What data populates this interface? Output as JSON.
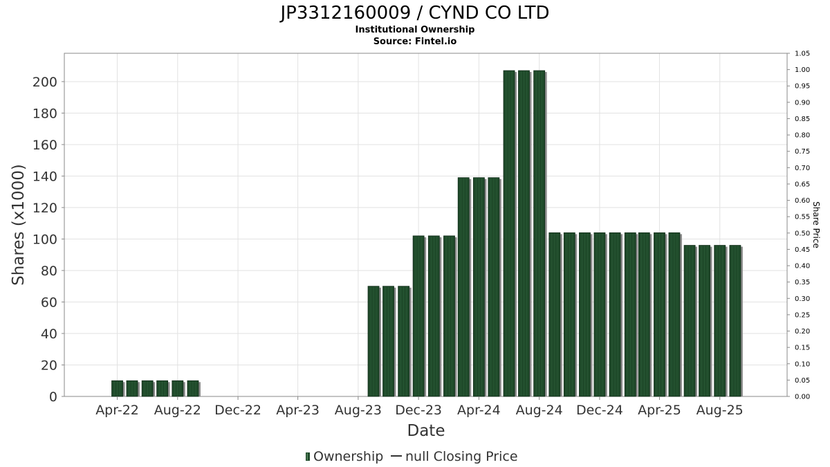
{
  "chart_data": {
    "type": "bar",
    "title": "JP3312160009 / CYND CO LTD",
    "subtitle": "Institutional Ownership",
    "source": "Source: Fintel.io",
    "xlabel": "Date",
    "ylabel": "Shares (x1000)",
    "ylabel_right": "Share Price",
    "ylim": [
      0,
      218
    ],
    "ylim_right": [
      0,
      1.05
    ],
    "yticks": [
      0,
      20,
      40,
      60,
      80,
      100,
      120,
      140,
      160,
      180,
      200
    ],
    "yticks_right": [
      "0.00",
      "0.05",
      "0.10",
      "0.15",
      "0.20",
      "0.25",
      "0.30",
      "0.35",
      "0.40",
      "0.45",
      "0.50",
      "0.55",
      "0.60",
      "0.65",
      "0.70",
      "0.75",
      "0.80",
      "0.85",
      "0.90",
      "0.95",
      "1.00",
      "1.05"
    ],
    "x_range": [
      "2021-12-15",
      "2025-12-15"
    ],
    "xticks": [
      {
        "date": "2022-04-01",
        "label": "Apr-22"
      },
      {
        "date": "2022-08-01",
        "label": "Aug-22"
      },
      {
        "date": "2022-12-01",
        "label": "Dec-22"
      },
      {
        "date": "2023-04-01",
        "label": "Apr-23"
      },
      {
        "date": "2023-08-01",
        "label": "Aug-23"
      },
      {
        "date": "2023-12-01",
        "label": "Dec-23"
      },
      {
        "date": "2024-04-01",
        "label": "Apr-24"
      },
      {
        "date": "2024-08-01",
        "label": "Aug-24"
      },
      {
        "date": "2024-12-01",
        "label": "Dec-24"
      },
      {
        "date": "2025-04-01",
        "label": "Apr-25"
      },
      {
        "date": "2025-08-01",
        "label": "Aug-25"
      }
    ],
    "series": [
      {
        "name": "Ownership",
        "color": "#1f4a2a",
        "points": [
          {
            "date": "2022-04-01",
            "value": 10
          },
          {
            "date": "2022-05-01",
            "value": 10
          },
          {
            "date": "2022-06-01",
            "value": 10
          },
          {
            "date": "2022-07-01",
            "value": 10
          },
          {
            "date": "2022-08-01",
            "value": 10
          },
          {
            "date": "2022-09-01",
            "value": 10
          },
          {
            "date": "2023-09-01",
            "value": 70
          },
          {
            "date": "2023-10-01",
            "value": 70
          },
          {
            "date": "2023-11-01",
            "value": 70
          },
          {
            "date": "2023-12-01",
            "value": 102
          },
          {
            "date": "2024-01-01",
            "value": 102
          },
          {
            "date": "2024-02-01",
            "value": 102
          },
          {
            "date": "2024-03-01",
            "value": 139
          },
          {
            "date": "2024-04-01",
            "value": 139
          },
          {
            "date": "2024-05-01",
            "value": 139
          },
          {
            "date": "2024-06-01",
            "value": 207
          },
          {
            "date": "2024-07-01",
            "value": 207
          },
          {
            "date": "2024-08-01",
            "value": 207
          },
          {
            "date": "2024-09-01",
            "value": 104
          },
          {
            "date": "2024-10-01",
            "value": 104
          },
          {
            "date": "2024-11-01",
            "value": 104
          },
          {
            "date": "2024-12-01",
            "value": 104
          },
          {
            "date": "2025-01-01",
            "value": 104
          },
          {
            "date": "2025-02-01",
            "value": 104
          },
          {
            "date": "2025-03-01",
            "value": 104
          },
          {
            "date": "2025-04-01",
            "value": 104
          },
          {
            "date": "2025-05-01",
            "value": 104
          },
          {
            "date": "2025-06-01",
            "value": 96
          },
          {
            "date": "2025-07-01",
            "value": 96
          },
          {
            "date": "2025-08-01",
            "value": 96
          },
          {
            "date": "2025-09-01",
            "value": 96
          }
        ]
      },
      {
        "name": "null Closing Price",
        "color": "#333333",
        "points": []
      }
    ],
    "grid": true,
    "legend": "bottom"
  }
}
